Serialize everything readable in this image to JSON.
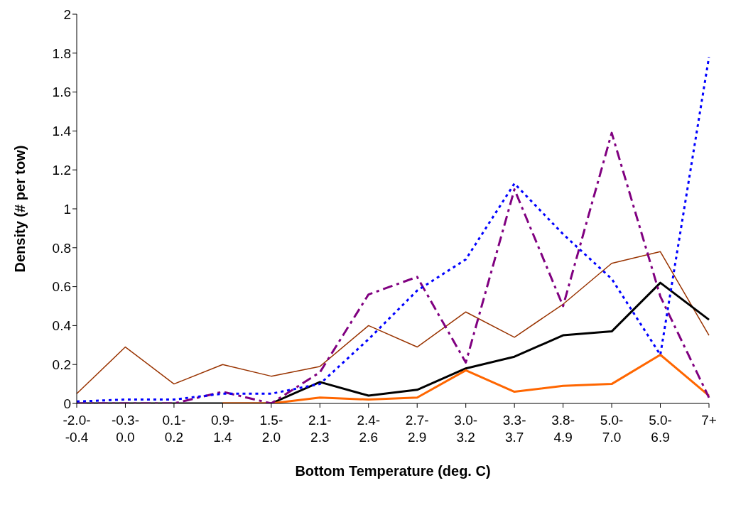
{
  "chart_data": {
    "type": "line",
    "xlabel": "Bottom Temperature (deg. C)",
    "ylabel": "Density (# per tow)",
    "categories": [
      "-2.0-\n-0.4",
      "-0.3-\n0.0",
      "0.1-\n0.2",
      "0.9-\n1.4",
      "1.5-\n2.0",
      "2.1-\n2.3",
      "2.4-\n2.6",
      "2.7-\n2.9",
      "3.0-\n3.2",
      "3.3-\n3.7",
      "3.8-\n4.9",
      "5.0-\n7.0",
      "5.0-\n6.9",
      "7+"
    ],
    "series": [
      {
        "color": "#993300",
        "line_style": "solid",
        "values": [
          0.05,
          0.29,
          0.1,
          0.2,
          0.14,
          0.19,
          0.4,
          0.29,
          0.47,
          0.34,
          0.51,
          0.72,
          0.78,
          0.35
        ]
      },
      {
        "color": "#000000",
        "line_style": "solid",
        "values": [
          0,
          0,
          0,
          0,
          0,
          0.11,
          0.04,
          0.07,
          0.18,
          0.24,
          0.35,
          0.37,
          0.62,
          0.43
        ]
      },
      {
        "color": "#ff6600",
        "line_style": "solid",
        "values": [
          null,
          null,
          null,
          0,
          0,
          0.03,
          0.02,
          0.03,
          0.17,
          0.06,
          0.09,
          0.1,
          0.25,
          0.04
        ]
      },
      {
        "color": "#800080",
        "line_style": "dashed",
        "values": [
          0,
          0,
          0,
          0.06,
          0,
          0.16,
          0.56,
          0.65,
          0.21,
          1.1,
          0.5,
          1.39,
          0.55,
          0.03
        ]
      },
      {
        "color": "#0000ff",
        "line_style": "dotted",
        "values": [
          0.01,
          0.02,
          0.02,
          0.05,
          0.05,
          0.1,
          0.33,
          0.58,
          0.74,
          1.13,
          0.87,
          0.64,
          0.25,
          1.78
        ]
      }
    ],
    "ylim": [
      0,
      2
    ],
    "yticks": [
      0,
      0.2,
      0.4,
      0.6,
      0.8,
      1,
      1.2,
      1.4,
      1.6,
      1.8,
      2
    ],
    "marker": "none"
  }
}
